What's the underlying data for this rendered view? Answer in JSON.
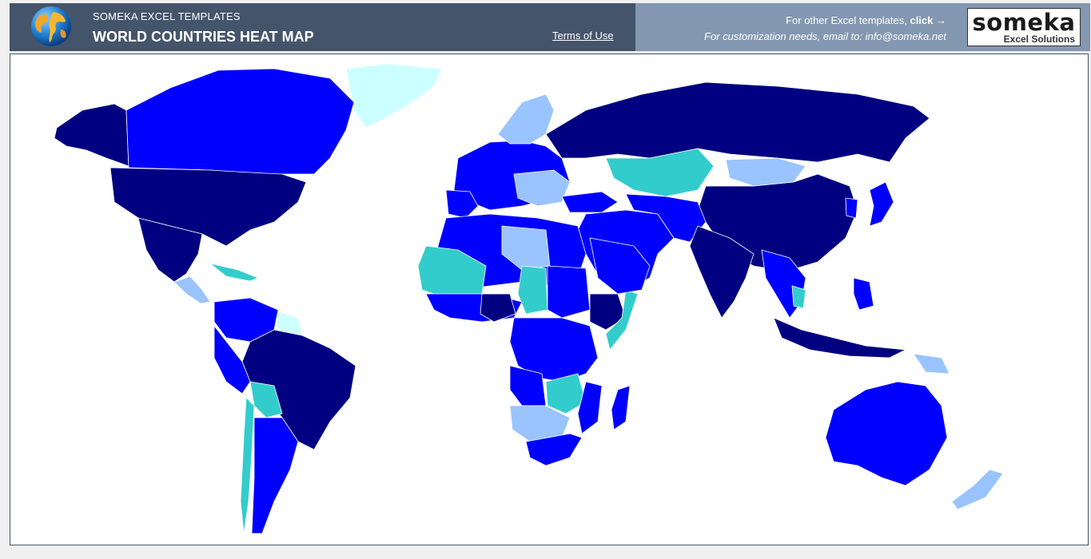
{
  "header": {
    "brand": "SOMEKA EXCEL TEMPLATES",
    "title": "WORLD COUNTRIES HEAT MAP",
    "terms_link": "Terms of Use",
    "promo_text": "For other Excel templates,",
    "promo_click": "click →",
    "contact_text": "For customization needs, email to: info@someka.net",
    "logo_word": "someka",
    "logo_sub": "Excel Solutions"
  },
  "colors": {
    "header_dark": "#44546a",
    "header_light": "#8497b0",
    "navy": "#000080",
    "blue": "#0000ff",
    "light_blue": "#99c4ff",
    "teal": "#33cccc",
    "pale_cyan": "#ccffff"
  },
  "icons": {
    "globe": "globe-icon",
    "logo": "someka-logo"
  }
}
